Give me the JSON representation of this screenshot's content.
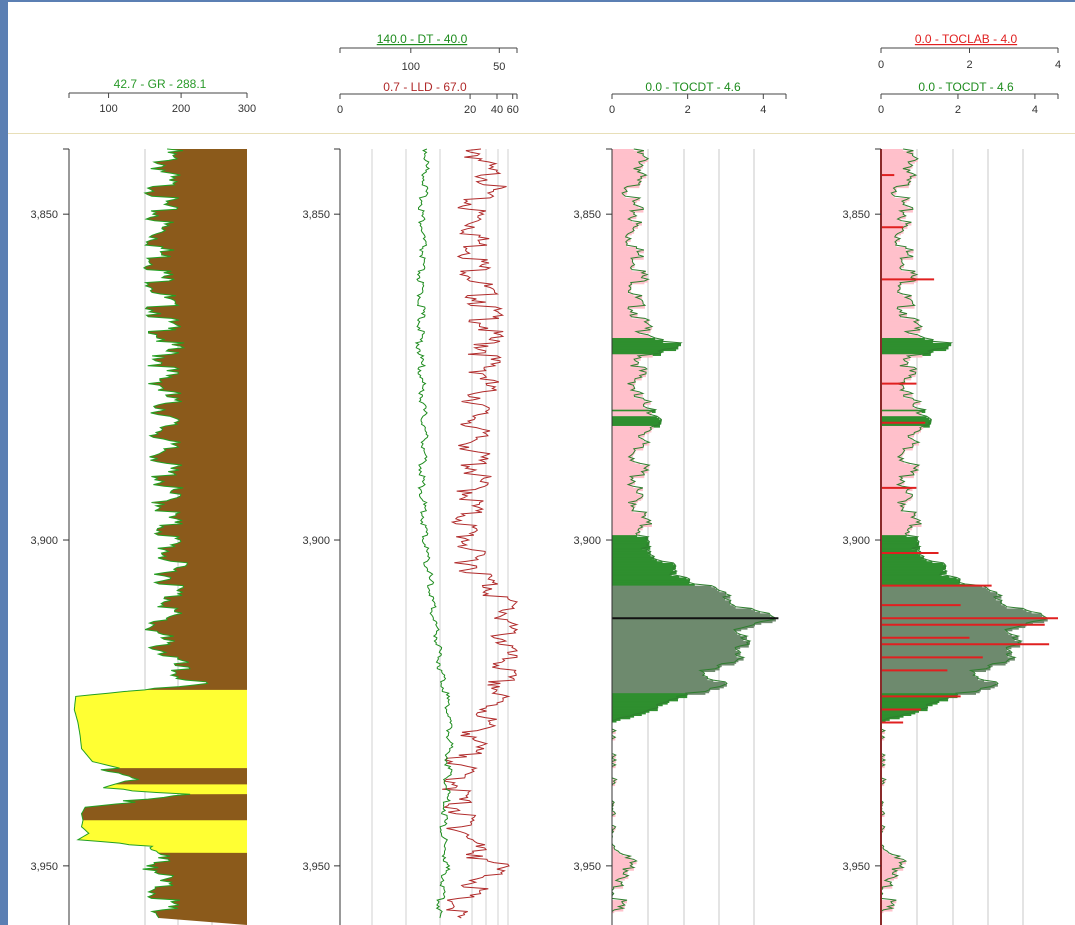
{
  "chart_data": [
    {
      "type": "line",
      "track": "track-1",
      "curves": [
        {
          "mnemonic": "GR",
          "title": "42.7 - GR - 288.1",
          "range": [
            42.7,
            288.1
          ],
          "color": "#22a022",
          "fill_color": "#8b5a1b",
          "sand_fill_color": "#ffff33",
          "depth": [
            3840,
            3845,
            3850,
            3855,
            3860,
            3865,
            3870,
            3875,
            3880,
            3885,
            3890,
            3895,
            3900,
            3905,
            3910,
            3913,
            3916,
            3918,
            3920,
            3922,
            3924,
            3926,
            3928,
            3930,
            3932,
            3934,
            3936,
            3938,
            3939,
            3940,
            3941,
            3942,
            3943,
            3944,
            3945,
            3946,
            3947,
            3948,
            3950,
            3952,
            3955,
            3958
          ],
          "values": [
            190,
            185,
            180,
            180,
            182,
            183,
            190,
            185,
            190,
            185,
            188,
            190,
            192,
            195,
            200,
            175,
            180,
            195,
            200,
            230,
            52,
            50,
            55,
            58,
            60,
            75,
            150,
            90,
            230,
            150,
            65,
            60,
            62,
            60,
            70,
            55,
            170,
            175,
            180,
            178,
            185,
            182
          ]
        }
      ],
      "x_ticks": [
        100,
        200,
        300
      ],
      "depth_ticks": [
        3850,
        3900,
        3950
      ],
      "depth_labels": [
        "3,850",
        "3,900",
        "3,950"
      ]
    },
    {
      "type": "line",
      "track": "track-2",
      "curves": [
        {
          "mnemonic": "DT",
          "title": "140.0 - DT - 40.0",
          "range": [
            140.0,
            40.0
          ],
          "color": "#1e8c1e",
          "depth": [
            3840,
            3845,
            3850,
            3855,
            3860,
            3865,
            3870,
            3875,
            3880,
            3885,
            3890,
            3895,
            3900,
            3905,
            3910,
            3915,
            3920,
            3925,
            3930,
            3935,
            3940,
            3945,
            3950,
            3955,
            3958
          ],
          "values": [
            92,
            93,
            95,
            94,
            96,
            95,
            96,
            95,
            94,
            93,
            95,
            94,
            93,
            91,
            89,
            86,
            84,
            80,
            79,
            80,
            81,
            83,
            81,
            84,
            85
          ]
        },
        {
          "mnemonic": "LLD",
          "title": "0.7 - LLD - 67.0",
          "range": [
            0.7,
            67.0
          ],
          "log_scale": true,
          "color": "#b02a2a",
          "depth": [
            3840,
            3843,
            3845,
            3848,
            3850,
            3855,
            3860,
            3865,
            3870,
            3875,
            3880,
            3885,
            3890,
            3895,
            3898,
            3900,
            3903,
            3906,
            3908,
            3910,
            3920,
            3925,
            3928,
            3932,
            3935,
            3940,
            3945,
            3948,
            3950,
            3955,
            3958
          ],
          "values": [
            30,
            35,
            50,
            25,
            28,
            30,
            31,
            40,
            40,
            38,
            30,
            28,
            30,
            25,
            22,
            24,
            26,
            35,
            50,
            65,
            60,
            45,
            35,
            25,
            20,
            18,
            23,
            30,
            50,
            18,
            16
          ]
        }
      ],
      "x_ticks_top": [
        100,
        50
      ],
      "x_ticks_bottom": [
        0,
        20,
        40,
        60
      ],
      "depth_ticks": [
        3850,
        3900,
        3950
      ],
      "depth_labels": [
        "3,850",
        "3,900",
        "3,950"
      ]
    },
    {
      "type": "area",
      "track": "track-3",
      "curves": [
        {
          "mnemonic": "TOCDT",
          "title": "0.0 - TOCDT - 4.6",
          "range": [
            0.0,
            4.6
          ],
          "color": "#2f8f2f",
          "depth": [
            3840,
            3842,
            3845,
            3848,
            3850,
            3853,
            3856,
            3860,
            3862,
            3865,
            3868,
            3870,
            3872,
            3875,
            3878,
            3880,
            3883,
            3886,
            3889,
            3892,
            3895,
            3898,
            3900,
            3902,
            3905,
            3908,
            3910,
            3912,
            3914,
            3916,
            3918,
            3920,
            3922,
            3924,
            3926,
            3928,
            3930,
            3935,
            3940,
            3945,
            3948,
            3950,
            3952,
            3955,
            3958
          ],
          "values": [
            0.7,
            1.0,
            0.7,
            0.6,
            0.8,
            0.6,
            0.8,
            0.9,
            0.7,
            0.8,
            1.0,
            1.8,
            0.9,
            0.8,
            0.7,
            1.3,
            1.2,
            0.7,
            0.9,
            0.7,
            0.8,
            1.0,
            0.9,
            1.2,
            1.8,
            3.0,
            3.5,
            4.4,
            3.4,
            3.6,
            3.5,
            2.5,
            3.0,
            2.0,
            1.0,
            0.1,
            0.0,
            0.0,
            0.0,
            0.0,
            0.3,
            0.8,
            0.2,
            0.3,
            0.1
          ]
        }
      ],
      "fill_colors": [
        "#ffc0cb",
        "#2f8f2f",
        "#6e8a6e"
      ],
      "x_ticks": [
        0,
        2,
        4
      ],
      "depth_ticks": [
        3850,
        3900,
        3950
      ],
      "depth_labels": [
        "3,850",
        "3,900",
        "3,950"
      ]
    },
    {
      "type": "area",
      "track": "track-4",
      "curves": [
        {
          "mnemonic": "TOCLAB",
          "title": "0.0 - TOCLAB - 4.0",
          "range": [
            0.0,
            4.0
          ],
          "color": "#e02020",
          "samples_depth": [
            3844,
            3852,
            3860,
            3876,
            3882,
            3892,
            3902,
            3907,
            3910,
            3912,
            3913,
            3915,
            3916,
            3918,
            3920,
            3924,
            3926,
            3928
          ],
          "samples_value": [
            0.3,
            0.5,
            1.2,
            0.8,
            1.0,
            0.8,
            1.3,
            2.5,
            1.8,
            4.0,
            3.7,
            2.0,
            3.8,
            2.3,
            1.5,
            1.8,
            0.9,
            0.5
          ]
        },
        {
          "mnemonic": "TOCDT",
          "title": "0.0 - TOCDT - 4.6",
          "range": [
            0.0,
            4.6
          ],
          "color": "#2f8f2f"
        }
      ],
      "x_ticks_top": [
        0,
        2,
        4
      ],
      "x_ticks_bottom": [
        0,
        2,
        4
      ],
      "depth_ticks": [
        3850,
        3900,
        3950
      ],
      "depth_labels": [
        "3,850",
        "3,900",
        "3,950"
      ]
    }
  ],
  "header": {
    "t1_gr_title": "42.7 - GR - 288.1",
    "t2_dt_title": "140.0 - DT - 40.0",
    "t2_lld_title": "0.7 - LLD - 67.0",
    "t3_toc_title": "0.0 - TOCDT - 4.6",
    "t4_toclab_title": "0.0 - TOCLAB - 4.0",
    "t4_tocdt_title": "0.0 - TOCDT - 4.6"
  },
  "colors": {
    "gr_title": "#2a9a2a",
    "dt_title": "#1e8c1e",
    "lld_title": "#b02a2a",
    "toclab_title": "#e02020",
    "shale": "#8b5a1b",
    "sand": "#ffff33",
    "toc_low": "#ffc0cb",
    "toc_mid": "#2f8f2f",
    "toc_high": "#6e8a6e"
  }
}
